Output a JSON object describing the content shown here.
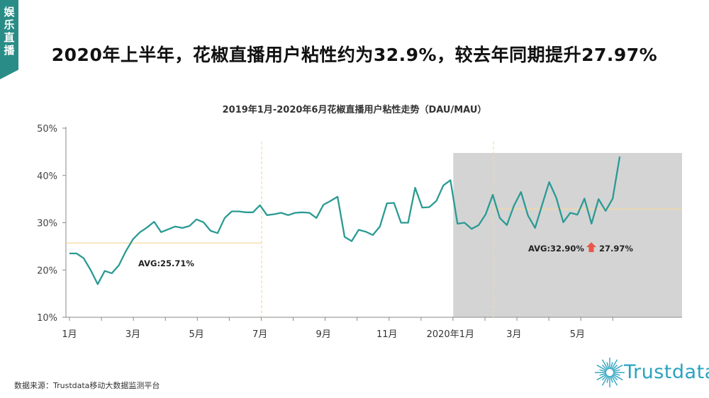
{
  "side_tab": {
    "label": "娱乐直播"
  },
  "headline": "2020年上半年，花椒直播用户粘性约为32.9%，较去年同期提升27.97%",
  "source": "数据来源：Trustdata移动大数据监测平台",
  "logo": {
    "text": "Trustdata",
    "icon": "sunburst-icon",
    "color": "#2aa3bf"
  },
  "colors": {
    "line": "#2a9a93",
    "shade": "#d4d4d4",
    "avg_line": "#f5d9a0",
    "arrow": "#e8574a",
    "tab": "#2a8c87"
  },
  "chart_data": {
    "type": "line",
    "title": "2019年1月-2020年6月花椒直播用户粘性走势（DAU/MAU）",
    "xlabel": "",
    "ylabel": "",
    "ylim": [
      10,
      50
    ],
    "yticks": [
      "10%",
      "20%",
      "30%",
      "40%",
      "50%"
    ],
    "xticks": [
      "1月",
      "3月",
      "5月",
      "7月",
      "9月",
      "11月",
      "2020年1月",
      "3月",
      "5月"
    ],
    "grid": false,
    "series": [
      {
        "values": [
          23.5,
          23.5,
          22.5,
          20.0,
          17.0,
          19.8,
          19.3,
          21.0,
          24.0,
          26.5,
          28.0,
          29.0,
          30.2,
          28.0,
          28.6,
          29.2,
          28.9,
          29.3,
          30.7,
          30.1,
          28.3,
          27.8,
          31.0,
          32.4,
          32.4,
          32.2,
          32.2,
          33.7,
          31.6,
          31.8,
          32.1,
          31.6,
          32.1,
          32.2,
          32.1,
          31.0,
          33.8,
          34.6,
          35.5,
          27.0,
          26.1,
          28.5,
          28.1,
          27.4,
          29.2,
          34.1,
          34.2,
          30.0,
          30.0,
          37.4,
          33.2,
          33.3,
          34.6,
          37.9,
          39.0,
          29.8,
          30.0,
          28.7,
          29.5,
          31.8,
          35.9,
          31.0,
          29.5,
          33.6,
          36.5,
          31.5,
          28.9,
          33.8,
          38.6,
          35.3,
          30.1,
          32.1,
          31.7,
          35.1,
          29.8,
          35.0,
          32.5,
          35.1,
          44.0
        ]
      }
    ],
    "averages": [
      {
        "label": "AVG:25.71%",
        "value": 25.71
      },
      {
        "label": "AVG:32.90%",
        "value": 32.9,
        "change": "27.97%"
      }
    ]
  }
}
